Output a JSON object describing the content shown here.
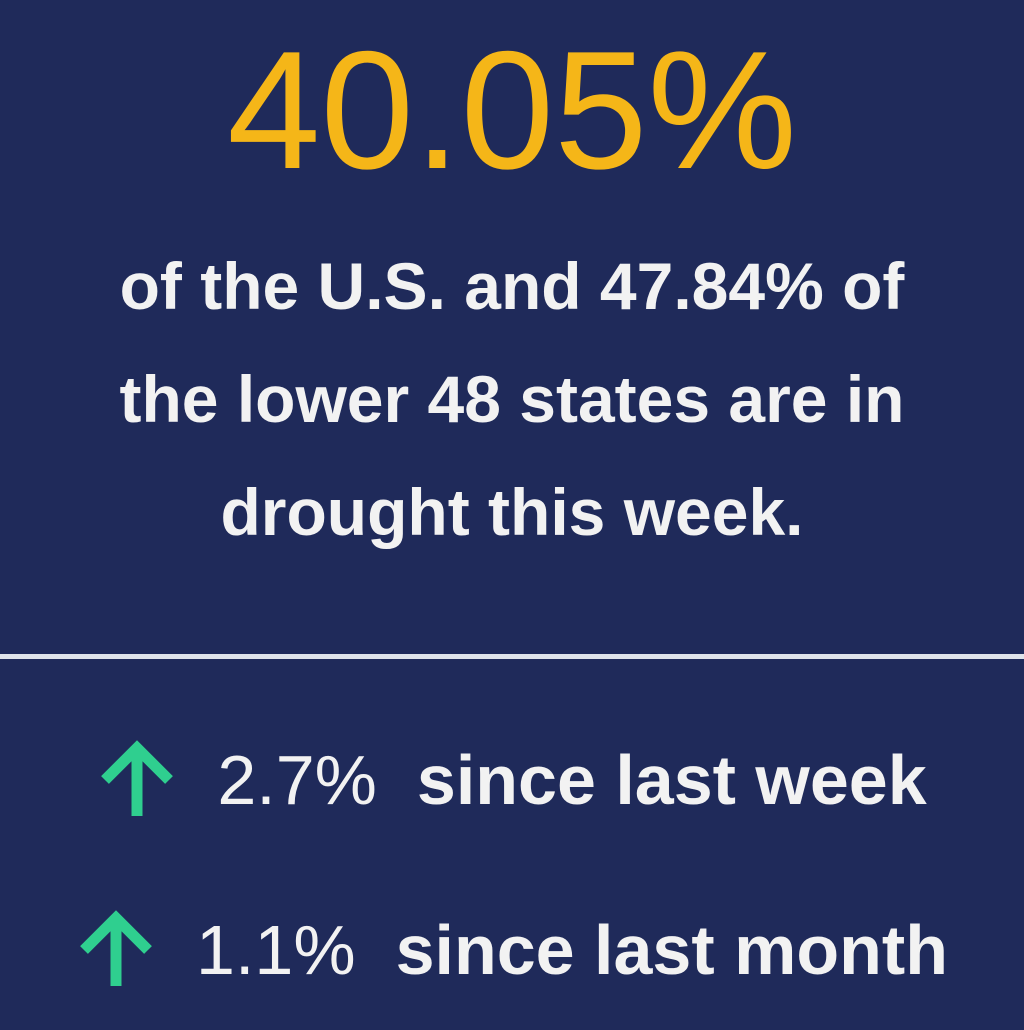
{
  "headline": "40.05%",
  "description": [
    "of the U.S. and 47.84% of",
    "the lower 48 states are in",
    "drought this week."
  ],
  "changes": [
    {
      "value": "2.7%",
      "label": "since last week"
    },
    {
      "value": "1.1%",
      "label": "since last month"
    }
  ]
}
